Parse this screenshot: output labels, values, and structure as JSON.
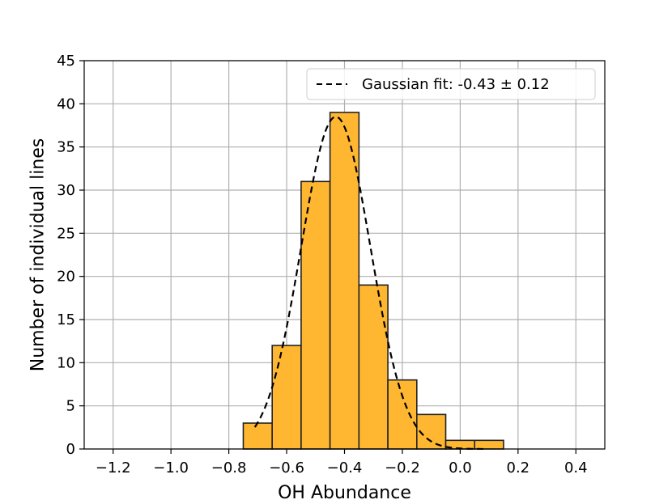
{
  "chart_data": {
    "type": "bar",
    "xlabel": "OH Abundance",
    "ylabel": "Number of individual lines",
    "xlim": [
      -1.3,
      0.5
    ],
    "ylim": [
      0,
      45
    ],
    "x_ticks": [
      -1.2,
      -1.0,
      -0.8,
      -0.6,
      -0.4,
      -0.2,
      0.0,
      0.2,
      0.4
    ],
    "x_tick_labels": [
      "−1.2",
      "−1.0",
      "−0.8",
      "−0.6",
      "−0.4",
      "−0.2",
      "0.0",
      "0.2",
      "0.4"
    ],
    "y_ticks": [
      0,
      5,
      10,
      15,
      20,
      25,
      30,
      35,
      40,
      45
    ],
    "y_tick_labels": [
      "0",
      "5",
      "10",
      "15",
      "20",
      "25",
      "30",
      "35",
      "40",
      "45"
    ],
    "grid": true,
    "histogram": {
      "bin_edges": [
        -0.75,
        -0.65,
        -0.55,
        -0.45,
        -0.35,
        -0.25,
        -0.15,
        -0.05,
        0.05,
        0.15
      ],
      "counts": [
        3,
        12,
        31,
        39,
        19,
        8,
        4,
        1,
        1
      ],
      "color": "#FFB732",
      "edge_color": "#222222"
    },
    "fit": {
      "name": "Gaussian fit: -0.43 ± 0.12",
      "mean": -0.43,
      "sigma": 0.12,
      "peak": 38.5,
      "x_range": [
        -0.71,
        0.08
      ],
      "style": "dashed",
      "color": "#000000"
    },
    "legend_position": "top-right"
  }
}
